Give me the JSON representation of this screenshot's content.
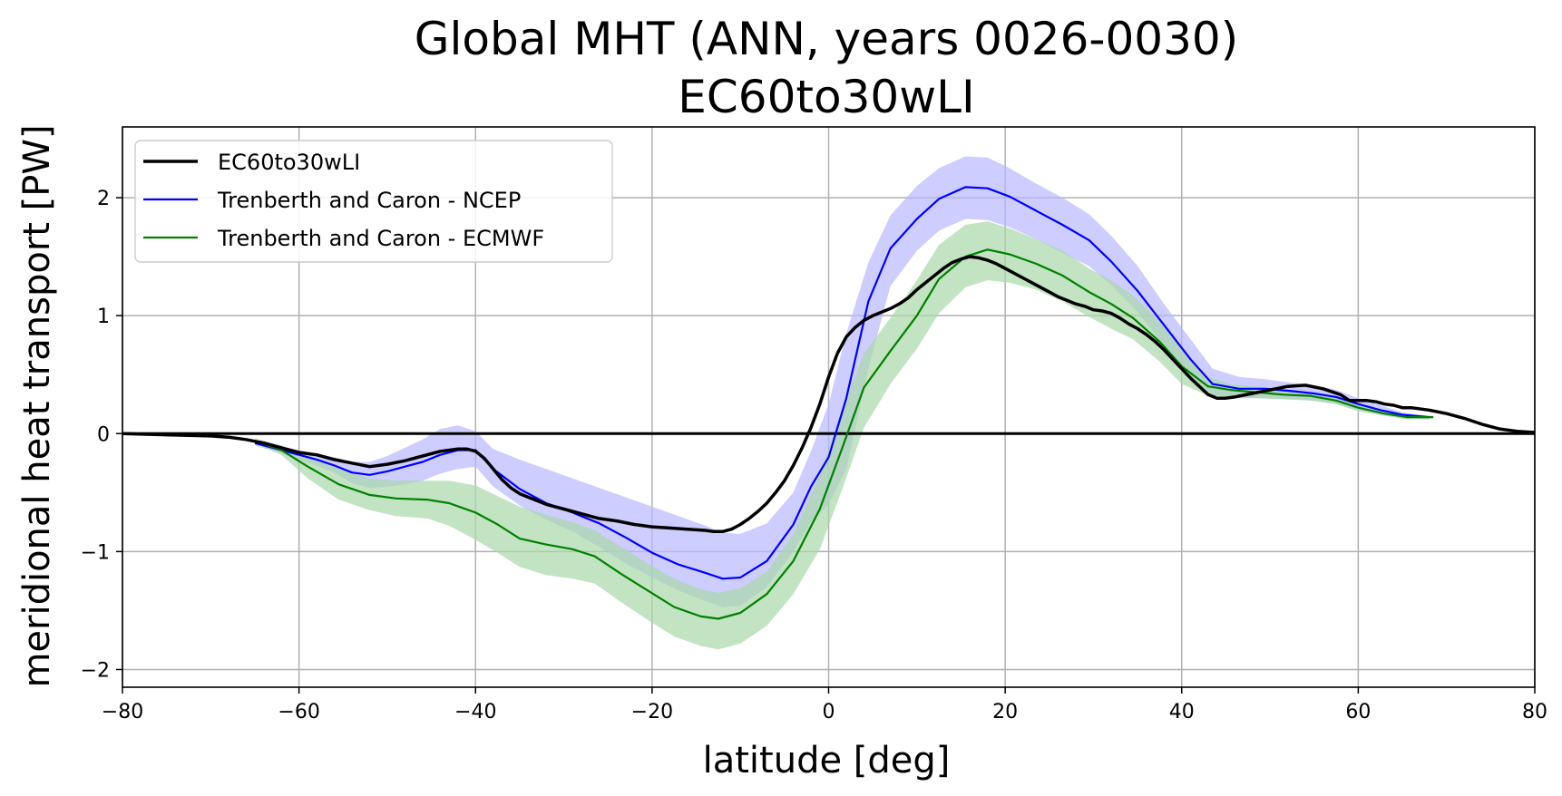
{
  "chart_data": {
    "type": "line",
    "title_lines": [
      "Global MHT (ANN, years 0026-0030)",
      "EC60to30wLI"
    ],
    "xlabel": "latitude [deg]",
    "ylabel": "meridional heat transport [PW]",
    "xlim": [
      -80,
      80
    ],
    "ylim": [
      -2.15,
      2.6
    ],
    "grid": true,
    "legend_location": "upper-left",
    "x_ticks": [
      {
        "value": -80,
        "label": "−80"
      },
      {
        "value": -60,
        "label": "−60"
      },
      {
        "value": -40,
        "label": "−40"
      },
      {
        "value": -20,
        "label": "−20"
      },
      {
        "value": 0,
        "label": "0"
      },
      {
        "value": 20,
        "label": "20"
      },
      {
        "value": 40,
        "label": "40"
      },
      {
        "value": 60,
        "label": "60"
      },
      {
        "value": 80,
        "label": "80"
      }
    ],
    "y_ticks": [
      {
        "value": -2,
        "label": "−2"
      },
      {
        "value": -1,
        "label": "−1"
      },
      {
        "value": 0,
        "label": "0"
      },
      {
        "value": 1,
        "label": "1"
      },
      {
        "value": 2,
        "label": "2"
      }
    ],
    "zero_line": true,
    "series": [
      {
        "name": "EC60to30wLI",
        "color": "#000000",
        "x": [
          -80,
          -75,
          -70,
          -68,
          -66,
          -64,
          -62,
          -60,
          -58,
          -56,
          -54,
          -52,
          -50,
          -48,
          -46,
          -44,
          -42,
          -41,
          -40,
          -39,
          -38,
          -37,
          -36,
          -35,
          -34,
          -33,
          -32,
          -30,
          -28,
          -26,
          -24,
          -22,
          -20,
          -18,
          -16,
          -14,
          -13,
          -12,
          -11,
          -10,
          -9,
          -8,
          -7,
          -6,
          -5,
          -4,
          -3,
          -2,
          -1,
          0,
          1,
          2,
          3,
          4,
          5,
          6,
          7,
          8,
          9,
          10,
          11,
          12,
          13,
          14,
          15,
          16,
          17,
          18,
          19,
          20,
          21,
          22,
          23,
          24,
          25,
          26,
          27,
          28,
          29,
          30,
          31,
          32,
          33,
          34,
          35,
          36,
          37,
          38,
          39,
          40,
          41,
          42,
          43,
          44,
          45,
          46,
          48,
          50,
          52,
          54,
          56,
          58,
          59,
          60,
          61,
          62,
          63,
          64,
          65,
          66,
          68,
          70,
          72,
          74,
          76,
          78,
          80
        ],
        "y": [
          0,
          -0.01,
          -0.02,
          -0.03,
          -0.05,
          -0.08,
          -0.12,
          -0.16,
          -0.18,
          -0.22,
          -0.25,
          -0.28,
          -0.26,
          -0.23,
          -0.19,
          -0.15,
          -0.13,
          -0.13,
          -0.15,
          -0.21,
          -0.3,
          -0.39,
          -0.46,
          -0.51,
          -0.54,
          -0.57,
          -0.6,
          -0.64,
          -0.68,
          -0.72,
          -0.74,
          -0.77,
          -0.79,
          -0.8,
          -0.81,
          -0.82,
          -0.83,
          -0.83,
          -0.81,
          -0.77,
          -0.72,
          -0.66,
          -0.59,
          -0.5,
          -0.4,
          -0.27,
          -0.12,
          0.05,
          0.25,
          0.48,
          0.68,
          0.82,
          0.9,
          0.96,
          1.0,
          1.03,
          1.06,
          1.1,
          1.15,
          1.22,
          1.28,
          1.34,
          1.4,
          1.45,
          1.48,
          1.5,
          1.49,
          1.47,
          1.44,
          1.4,
          1.36,
          1.32,
          1.28,
          1.24,
          1.2,
          1.16,
          1.13,
          1.1,
          1.08,
          1.05,
          1.04,
          1.02,
          0.98,
          0.93,
          0.89,
          0.84,
          0.78,
          0.71,
          0.63,
          0.55,
          0.47,
          0.4,
          0.33,
          0.3,
          0.3,
          0.31,
          0.34,
          0.37,
          0.4,
          0.41,
          0.38,
          0.33,
          0.28,
          0.28,
          0.28,
          0.27,
          0.25,
          0.24,
          0.22,
          0.22,
          0.2,
          0.17,
          0.13,
          0.08,
          0.04,
          0.02,
          0.01
        ]
      },
      {
        "name": "Trenberth and Caron - NCEP",
        "color": "#0000ff",
        "band_color": "#b8b8ff",
        "x": [
          -65,
          -62,
          -60,
          -58,
          -56,
          -54,
          -52,
          -50,
          -48,
          -46,
          -44,
          -42,
          -40,
          -38,
          -35,
          -32,
          -29,
          -26,
          -23,
          -20,
          -17,
          -14,
          -12,
          -10,
          -7,
          -4,
          -2,
          0,
          2,
          4.5,
          7,
          10,
          12.5,
          15.5,
          18,
          20.5,
          23.5,
          26.5,
          29.5,
          32,
          35,
          38,
          41,
          43.5,
          46.5,
          49.5,
          52.5,
          55,
          57.5,
          60,
          62.5,
          65,
          68
        ],
        "y": [
          -0.08,
          -0.14,
          -0.18,
          -0.22,
          -0.27,
          -0.33,
          -0.35,
          -0.32,
          -0.28,
          -0.24,
          -0.18,
          -0.14,
          -0.14,
          -0.3,
          -0.47,
          -0.59,
          -0.67,
          -0.76,
          -0.88,
          -1.01,
          -1.11,
          -1.18,
          -1.23,
          -1.22,
          -1.08,
          -0.77,
          -0.45,
          -0.2,
          0.3,
          1.12,
          1.57,
          1.82,
          1.99,
          2.09,
          2.08,
          2.01,
          1.89,
          1.77,
          1.64,
          1.46,
          1.21,
          0.92,
          0.63,
          0.42,
          0.38,
          0.38,
          0.36,
          0.34,
          0.31,
          0.25,
          0.2,
          0.16,
          0.14
        ],
        "band_upper": [
          -0.06,
          -0.11,
          -0.14,
          -0.17,
          -0.2,
          -0.24,
          -0.24,
          -0.19,
          -0.12,
          -0.05,
          0.04,
          0.07,
          0.02,
          -0.13,
          -0.22,
          -0.3,
          -0.38,
          -0.46,
          -0.54,
          -0.62,
          -0.7,
          -0.78,
          -0.84,
          -0.85,
          -0.76,
          -0.5,
          -0.15,
          0.25,
          0.85,
          1.45,
          1.85,
          2.1,
          2.25,
          2.35,
          2.34,
          2.25,
          2.12,
          2.0,
          1.86,
          1.68,
          1.42,
          1.1,
          0.8,
          0.55,
          0.48,
          0.46,
          0.43,
          0.41,
          0.37,
          0.3,
          0.24,
          0.18,
          0.15
        ],
        "band_lower": [
          -0.1,
          -0.17,
          -0.22,
          -0.27,
          -0.33,
          -0.42,
          -0.46,
          -0.45,
          -0.43,
          -0.4,
          -0.34,
          -0.3,
          -0.28,
          -0.45,
          -0.61,
          -0.73,
          -0.83,
          -0.96,
          -1.1,
          -1.22,
          -1.33,
          -1.42,
          -1.47,
          -1.46,
          -1.3,
          -1.0,
          -0.75,
          -0.6,
          -0.3,
          0.55,
          1.25,
          1.55,
          1.72,
          1.82,
          1.81,
          1.75,
          1.65,
          1.53,
          1.42,
          1.26,
          1.03,
          0.75,
          0.48,
          0.33,
          0.3,
          0.3,
          0.29,
          0.28,
          0.25,
          0.2,
          0.16,
          0.13,
          0.12
        ]
      },
      {
        "name": "Trenberth and Caron - ECMWF",
        "color": "#008000",
        "band_color": "#a8d8a8",
        "x": [
          -65,
          -62,
          -59,
          -55.5,
          -52,
          -49,
          -45.5,
          -43,
          -40,
          -37.5,
          -35,
          -32,
          -29,
          -26.5,
          -23.5,
          -20.5,
          -17.5,
          -14.5,
          -12.5,
          -10,
          -7,
          -4,
          -1,
          1.5,
          4,
          7,
          10,
          12.5,
          15.5,
          18,
          20.5,
          23.5,
          26.5,
          29.5,
          32,
          34.5,
          37.5,
          40,
          43,
          45.5,
          48.5,
          51.5,
          54.5,
          57.5,
          60,
          63,
          65.5,
          68.5
        ],
        "y": [
          -0.06,
          -0.14,
          -0.28,
          -0.43,
          -0.52,
          -0.55,
          -0.56,
          -0.59,
          -0.67,
          -0.77,
          -0.89,
          -0.94,
          -0.98,
          -1.04,
          -1.19,
          -1.33,
          -1.47,
          -1.55,
          -1.57,
          -1.52,
          -1.36,
          -1.08,
          -0.64,
          -0.13,
          0.39,
          0.7,
          1.0,
          1.31,
          1.5,
          1.56,
          1.52,
          1.44,
          1.34,
          1.2,
          1.1,
          0.98,
          0.78,
          0.57,
          0.4,
          0.37,
          0.35,
          0.33,
          0.32,
          0.28,
          0.22,
          0.17,
          0.14,
          0.14
        ],
        "band_upper": [
          -0.04,
          -0.1,
          -0.18,
          -0.3,
          -0.38,
          -0.4,
          -0.4,
          -0.4,
          -0.44,
          -0.53,
          -0.62,
          -0.69,
          -0.75,
          -0.82,
          -0.96,
          -1.1,
          -1.23,
          -1.32,
          -1.35,
          -1.31,
          -1.17,
          -0.85,
          -0.35,
          0.2,
          0.68,
          0.98,
          1.3,
          1.6,
          1.77,
          1.8,
          1.74,
          1.65,
          1.55,
          1.4,
          1.3,
          1.17,
          0.95,
          0.72,
          0.48,
          0.42,
          0.4,
          0.37,
          0.35,
          0.31,
          0.25,
          0.19,
          0.16,
          0.15
        ],
        "band_lower": [
          -0.08,
          -0.18,
          -0.38,
          -0.56,
          -0.65,
          -0.7,
          -0.72,
          -0.78,
          -0.9,
          -1.01,
          -1.13,
          -1.2,
          -1.23,
          -1.27,
          -1.43,
          -1.58,
          -1.72,
          -1.8,
          -1.83,
          -1.78,
          -1.63,
          -1.36,
          -0.98,
          -0.48,
          0.05,
          0.42,
          0.72,
          1.02,
          1.24,
          1.3,
          1.28,
          1.22,
          1.12,
          0.99,
          0.89,
          0.8,
          0.61,
          0.42,
          0.32,
          0.31,
          0.3,
          0.29,
          0.28,
          0.25,
          0.19,
          0.15,
          0.12,
          0.13
        ]
      }
    ],
    "legend": [
      {
        "label": "EC60to30wLI",
        "color": "#000000"
      },
      {
        "label": "Trenberth and Caron - NCEP",
        "color": "#0000ff"
      },
      {
        "label": "Trenberth and Caron - ECMWF",
        "color": "#008000"
      }
    ]
  }
}
